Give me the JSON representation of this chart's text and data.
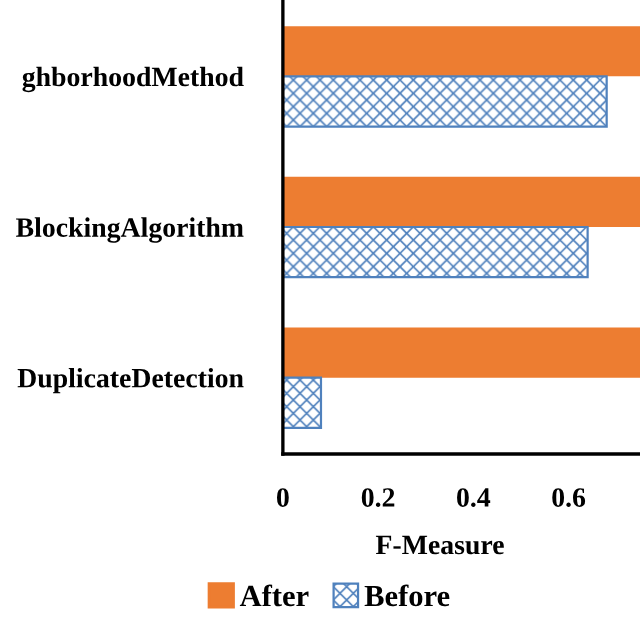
{
  "chart_data": {
    "type": "bar",
    "orientation": "horizontal",
    "xlabel": "F-Measure",
    "categories": [
      "ghborhoodMethod",
      "BlockingAlgorithm",
      "DuplicateDetection"
    ],
    "series": [
      {
        "name": "After",
        "color": "#ed7d31",
        "values": [
          0.75,
          0.75,
          0.75
        ]
      },
      {
        "name": "Before",
        "color": "#4f81bd",
        "values": [
          0.68,
          0.64,
          0.08
        ]
      }
    ],
    "xlim": [
      0,
      0.75
    ],
    "xticks": [
      0,
      0.2,
      0.4,
      0.6
    ],
    "grid": false,
    "legend": "bottom"
  }
}
